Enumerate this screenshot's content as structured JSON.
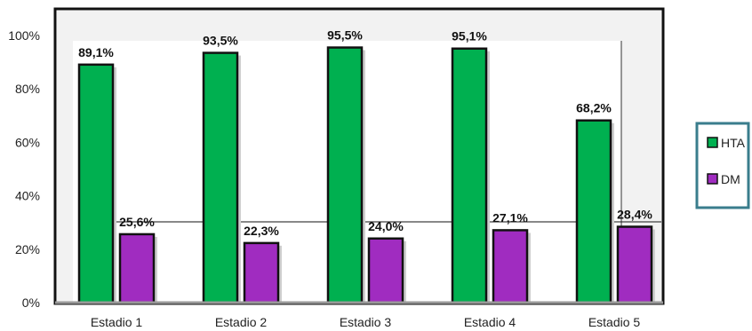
{
  "chart_data": {
    "type": "bar",
    "categories": [
      "Estadio 1",
      "Estadio 2",
      "Estadio 3",
      "Estadio 4",
      "Estadio 5"
    ],
    "series": [
      {
        "name": "HTA",
        "values": [
          89.1,
          93.5,
          95.5,
          95.1,
          68.2
        ],
        "labels": [
          "89,1%",
          "93,5%",
          "95,5%",
          "95,1%",
          "68,2%"
        ],
        "color": "#00b050"
      },
      {
        "name": "DM",
        "values": [
          25.6,
          22.3,
          24.0,
          27.1,
          28.4
        ],
        "labels": [
          "25,6%",
          "22,3%",
          "24,0%",
          "27,1%",
          "28,4%"
        ],
        "color": "#a02cc0"
      }
    ],
    "yticks": [
      "0%",
      "20%",
      "40%",
      "60%",
      "80%",
      "100%"
    ],
    "ylim": [
      0,
      100
    ],
    "title": "",
    "xlabel": "",
    "ylabel": "",
    "legend_position": "right",
    "grid": false,
    "legend_border_color": "#3a7d8c"
  }
}
